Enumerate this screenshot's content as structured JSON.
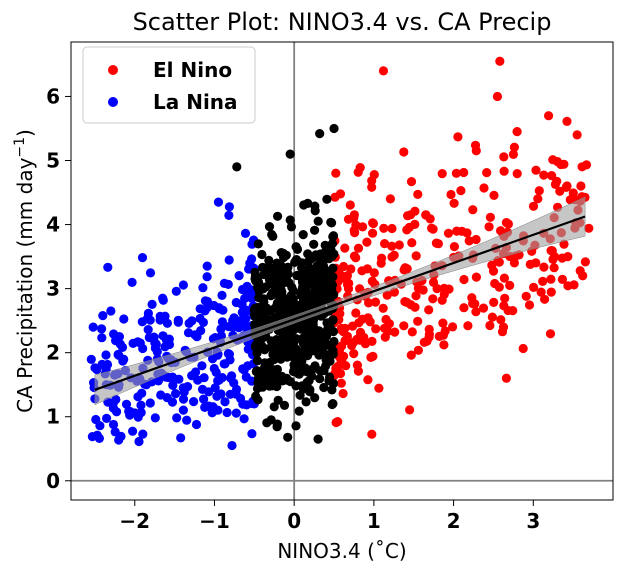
{
  "chart_data": {
    "type": "scatter",
    "title": "Scatter Plot: NINO3.4 vs. CA Precip",
    "xlabel": "NINO3.4 (˚C)",
    "ylabel_main": "CA Precipitation (mm day",
    "ylabel_sup": "−1",
    "ylabel_close": ")",
    "xlim": [
      -2.8,
      4.0
    ],
    "ylim": [
      -0.3,
      6.85
    ],
    "xticks": [
      -2,
      -1,
      0,
      1,
      2,
      3
    ],
    "yticks": [
      0,
      1,
      2,
      3,
      4,
      5,
      6
    ],
    "xtick_labels": [
      "−2",
      "−1",
      "0",
      "1",
      "2",
      "3"
    ],
    "ytick_labels": [
      "0",
      "1",
      "2",
      "3",
      "4",
      "5",
      "6"
    ],
    "reference_lines": {
      "x": 0,
      "y": 0,
      "color": "#808080"
    },
    "legend": {
      "position": "upper-left",
      "entries": [
        {
          "label": "El Nino",
          "color": "#ff0000"
        },
        {
          "label": "La Nina",
          "color": "#0000ff"
        }
      ]
    },
    "series": [
      {
        "name": "El Nino",
        "color": "#ff0000",
        "x_range": [
          0.5,
          3.7
        ],
        "y_center": 3.2,
        "count": 330
      },
      {
        "name": "La Nina",
        "color": "#0000ff",
        "x_range": [
          -2.55,
          -0.5
        ],
        "y_center": 2.0,
        "count": 280
      },
      {
        "color": "#000000",
        "x_range": [
          -0.5,
          0.5
        ],
        "y_center": 2.4,
        "count": 520
      }
    ],
    "highlighted_points": [
      {
        "x": 1.12,
        "y": 6.4,
        "color": "#ff0000"
      },
      {
        "x": 2.58,
        "y": 6.55,
        "color": "#ff0000"
      },
      {
        "x": 2.55,
        "y": 6.0,
        "color": "#ff0000"
      },
      {
        "x": 3.62,
        "y": 3.2,
        "color": "#ff0000"
      },
      {
        "x": 3.55,
        "y": 5.4,
        "color": "#ff0000"
      },
      {
        "x": -2.5,
        "y": 1.28,
        "color": "#0000ff"
      },
      {
        "x": -2.3,
        "y": 2.65,
        "color": "#0000ff"
      },
      {
        "x": -1.65,
        "y": 2.85,
        "color": "#0000ff"
      },
      {
        "x": -0.95,
        "y": 4.35,
        "color": "#0000ff"
      },
      {
        "x": -0.78,
        "y": 0.55,
        "color": "#0000ff"
      },
      {
        "x": -0.72,
        "y": 4.9,
        "color": "#000000"
      },
      {
        "x": -0.05,
        "y": 5.1,
        "color": "#000000"
      },
      {
        "x": 0.3,
        "y": 0.65,
        "color": "#000000"
      },
      {
        "x": 0.32,
        "y": 5.42,
        "color": "#000000"
      },
      {
        "x": 0.5,
        "y": 5.5,
        "color": "#000000"
      }
    ],
    "regression": {
      "slope": 0.44,
      "intercept": 2.52,
      "x_range": [
        -2.5,
        3.65
      ],
      "line_color": "#000000",
      "band_color": "#a0a0a0"
    }
  }
}
